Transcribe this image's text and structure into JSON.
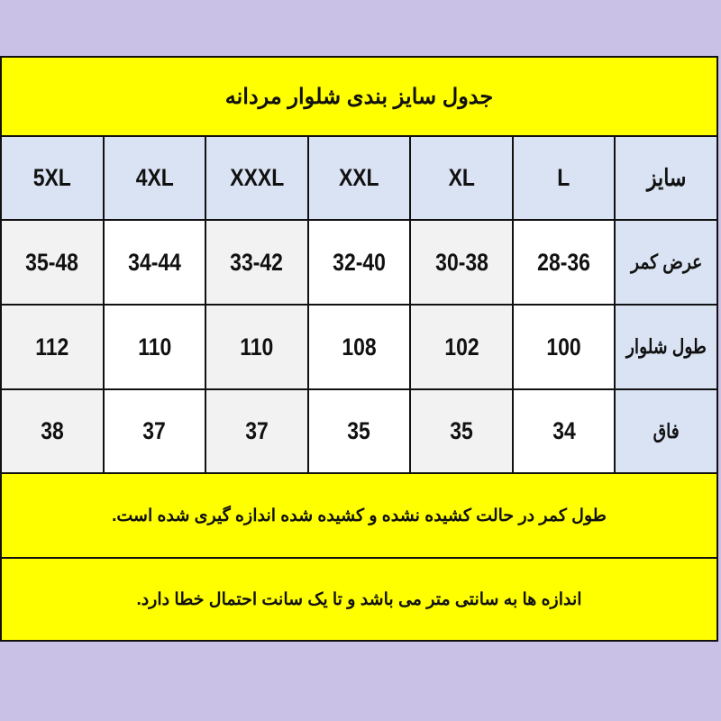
{
  "title": "جدول سایز بندی شلوار مردانه",
  "header": {
    "label": "سایز",
    "sizes": [
      "L",
      "XL",
      "XXL",
      "XXXL",
      "4XL",
      "5XL"
    ]
  },
  "rows": [
    {
      "label": "عرض کمر",
      "values": [
        "28-36",
        "30-38",
        "32-40",
        "33-42",
        "34-44",
        "35-48"
      ]
    },
    {
      "label": "طول شلوار",
      "values": [
        "100",
        "102",
        "108",
        "110",
        "110",
        "112"
      ]
    },
    {
      "label": "فاق",
      "values": [
        "34",
        "35",
        "35",
        "37",
        "37",
        "38"
      ]
    }
  ],
  "notes": [
    "طول کمر در حالت کشیده نشده و کشیده شده اندازه گیری شده است.",
    "اندازه ها به سانتی متر می باشد و تا یک سانت احتمال خطا دارد."
  ],
  "colors": {
    "background": "#c9c1e6",
    "banner": "#ffff00",
    "header": "#dae3f3",
    "cell_alt": "#f2f2f2",
    "cell": "#ffffff",
    "border": "#111111"
  }
}
